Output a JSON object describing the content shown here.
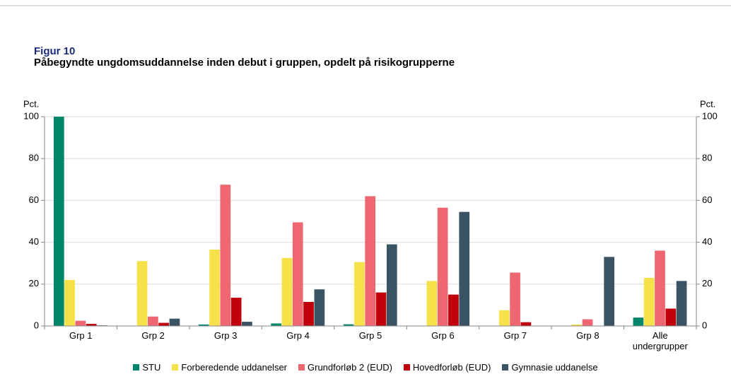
{
  "chart_data": {
    "type": "bar",
    "label": "Figur 10",
    "title": "Påbegyndte ungdomsuddannelse inden debut i gruppen, opdelt på risikogrupperne",
    "y_label": "Pct.",
    "y2_label": "Pct.",
    "categories": [
      "Grp 1",
      "Grp 2",
      "Grp 3",
      "Grp 4",
      "Grp 5",
      "Grp 6",
      "Grp 7",
      "Grp 8",
      "Alle undergrupper"
    ],
    "series": [
      {
        "name": "STU",
        "color": "#00876a",
        "values": [
          100,
          0,
          0.7,
          1.2,
          0.8,
          0,
          0,
          0,
          4
        ]
      },
      {
        "name": "Forberedende uddanelser",
        "color": "#f7e14b",
        "values": [
          22,
          31,
          36.5,
          32.5,
          30.5,
          21.5,
          7.5,
          0.7,
          23
        ]
      },
      {
        "name": "Grundforløb 2 (EUD)",
        "color": "#ee6670",
        "values": [
          2.5,
          4.5,
          67.5,
          49.5,
          62,
          56.5,
          25.5,
          3.2,
          36
        ]
      },
      {
        "name": "Hovedforløb (EUD)",
        "color": "#c0000b",
        "values": [
          1,
          1.5,
          13.5,
          11.5,
          16,
          15,
          1.8,
          0,
          8.3
        ]
      },
      {
        "name": "Gymnasie uddanelse",
        "color": "#3b5464",
        "values": [
          0.3,
          3.5,
          2,
          17.5,
          39,
          54.5,
          0,
          33,
          21.5
        ]
      }
    ],
    "ylim": [
      0,
      100
    ],
    "yticks": [
      0,
      20,
      40,
      60,
      80,
      100
    ],
    "y2lim": [
      0,
      100
    ],
    "y2ticks": [
      0,
      20,
      40,
      60,
      80,
      100
    ],
    "grid": true
  }
}
